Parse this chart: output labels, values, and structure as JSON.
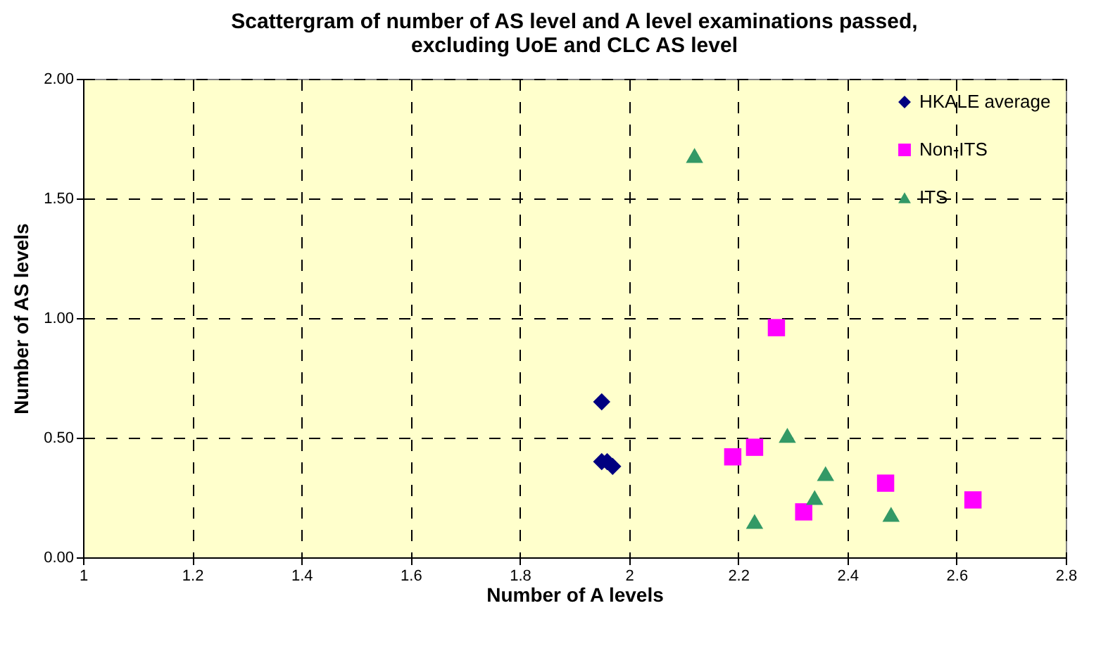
{
  "chart_data": {
    "type": "scatter",
    "title": "Scattergram of number of AS level and A level examinations passed, excluding UoE and CLC AS level",
    "xlabel": "Number of A levels",
    "ylabel": "Number of AS levels",
    "xlim": [
      1,
      2.8
    ],
    "xticks": [
      1,
      1.2,
      1.4,
      1.6,
      1.8,
      2,
      2.2,
      2.4,
      2.6,
      2.8
    ],
    "ylim": [
      0,
      2
    ],
    "yticks": [
      {
        "value": 0,
        "label": "0.00"
      },
      {
        "value": 0.5,
        "label": "0.50"
      },
      {
        "value": 1,
        "label": "1.00"
      },
      {
        "value": 1.5,
        "label": "1.50"
      },
      {
        "value": 2,
        "label": "2.00"
      }
    ],
    "grid": true,
    "line_style": "dashed",
    "legend": "top right",
    "series": [
      {
        "name": "HKALE average",
        "color": "#000080",
        "marker": "diamond",
        "x": [
          1.95,
          1.95,
          1.96,
          1.97
        ],
        "values": [
          0.65,
          0.4,
          0.4,
          0.38
        ]
      },
      {
        "name": "Non-ITS",
        "color": "#ff00ff",
        "marker": "square",
        "x": [
          2.19,
          2.23,
          2.27,
          2.32,
          2.47,
          2.63
        ],
        "values": [
          0.42,
          0.46,
          0.96,
          0.19,
          0.31,
          0.24
        ]
      },
      {
        "name": "ITS",
        "color": "#339966",
        "marker": "triangle",
        "x": [
          2.12,
          2.29,
          2.36,
          2.34,
          2.23,
          2.48
        ],
        "values": [
          1.68,
          0.51,
          0.35,
          0.25,
          0.15,
          0.18
        ]
      }
    ]
  }
}
